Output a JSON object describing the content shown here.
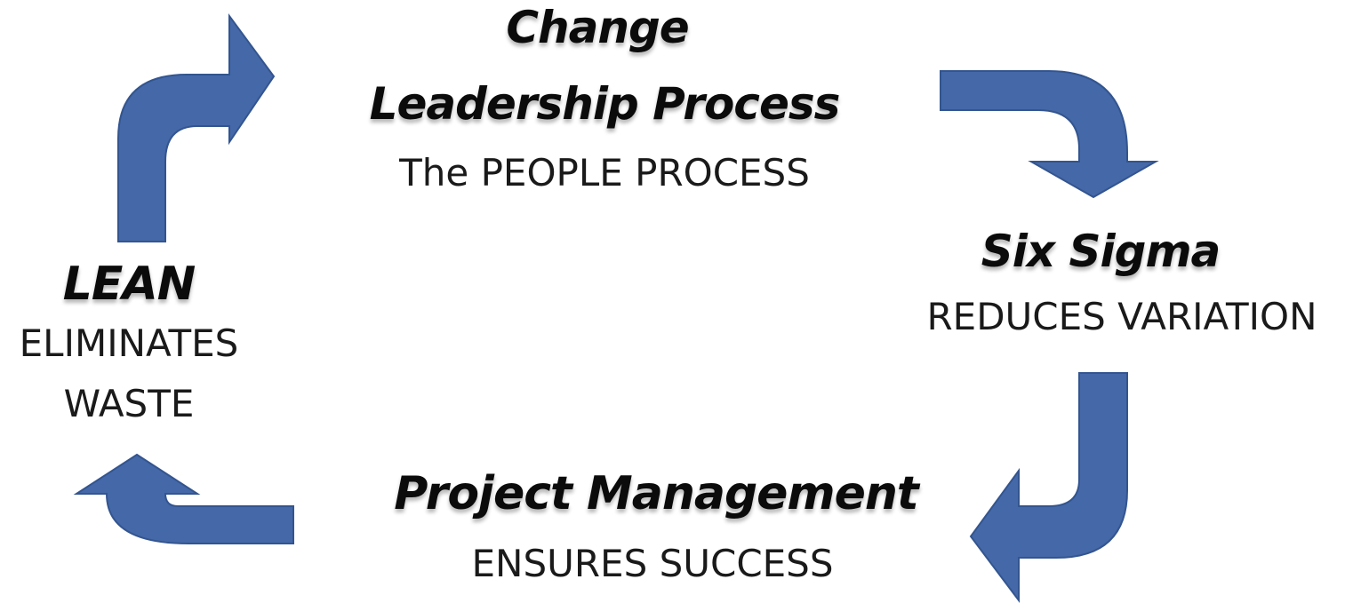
{
  "diagram": {
    "nodes": [
      {
        "id": "change",
        "title_lines": [
          "Change",
          "Leadership Process"
        ],
        "subtitle": "The PEOPLE PROCESS"
      },
      {
        "id": "sixsigma",
        "title": "Six Sigma",
        "subtitle": "REDUCES VARIATION"
      },
      {
        "id": "pm",
        "title": "Project Management",
        "subtitle": "ENSURES SUCCESS"
      },
      {
        "id": "lean",
        "title": "LEAN",
        "subtitle_lines": [
          "ELIMINATES",
          "WASTE"
        ]
      }
    ],
    "cycle_direction": "clockwise",
    "colors": {
      "arrow_fill": "#4468a8",
      "arrow_stroke": "#33558f",
      "text": "#0b0b0b",
      "background": "#ffffff"
    }
  }
}
